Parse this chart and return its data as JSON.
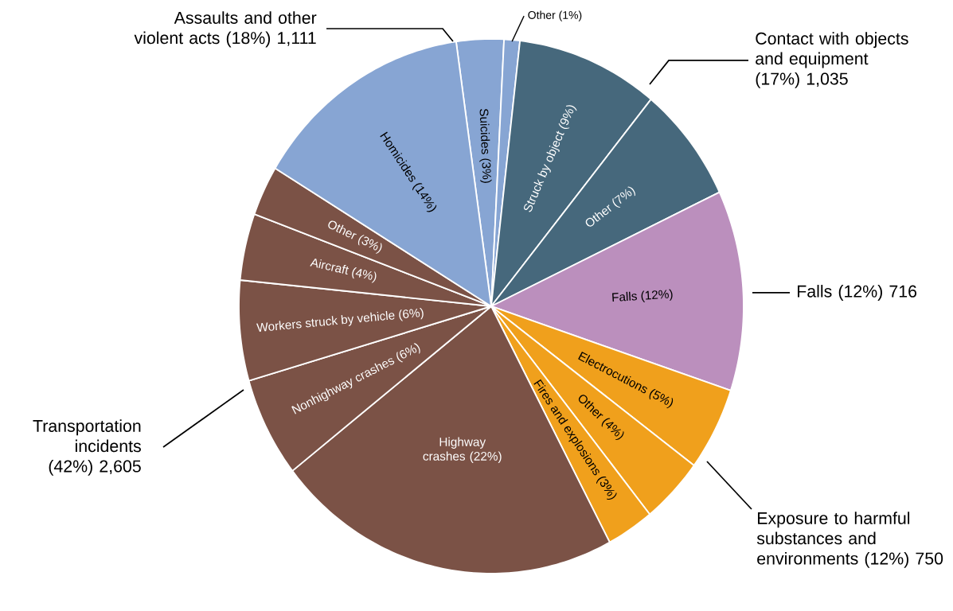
{
  "chart_data": {
    "type": "pie",
    "categories": [
      "Suicides (3%)",
      "Other (1%)",
      "Struck by object (9%)",
      "Other (7%)",
      "Falls (12%)",
      "Electrocutions (5%)",
      "Other (4%)",
      "Fires and explosions (3%)",
      "Highway crashes (22%)",
      "Nonhighway crashes (6%)",
      "Workers struck by vehicle (6%)",
      "Aircraft (4%)",
      "Other (3%)",
      "Homicides (14%)"
    ],
    "values": [
      3,
      1,
      9,
      7,
      12,
      5,
      4,
      3,
      22,
      6,
      6,
      4,
      3,
      14
    ],
    "colors": [
      "#87a5d3",
      "#87a5d3",
      "#46687c",
      "#46687c",
      "#bb8fbd",
      "#f0a01c",
      "#f0a01c",
      "#f0a01c",
      "#7b5246",
      "#7b5246",
      "#7b5246",
      "#7b5246",
      "#7b5246",
      "#87a5d3"
    ],
    "annotations": [
      "Assaults and other violent acts (18%) 1,111",
      "Contact with objects and equipment (17%) 1,035",
      "Falls (12%) 716",
      "Exposure to harmful substances and environments (12%) 750",
      "Transportation incidents (42%) 2,605"
    ]
  }
}
